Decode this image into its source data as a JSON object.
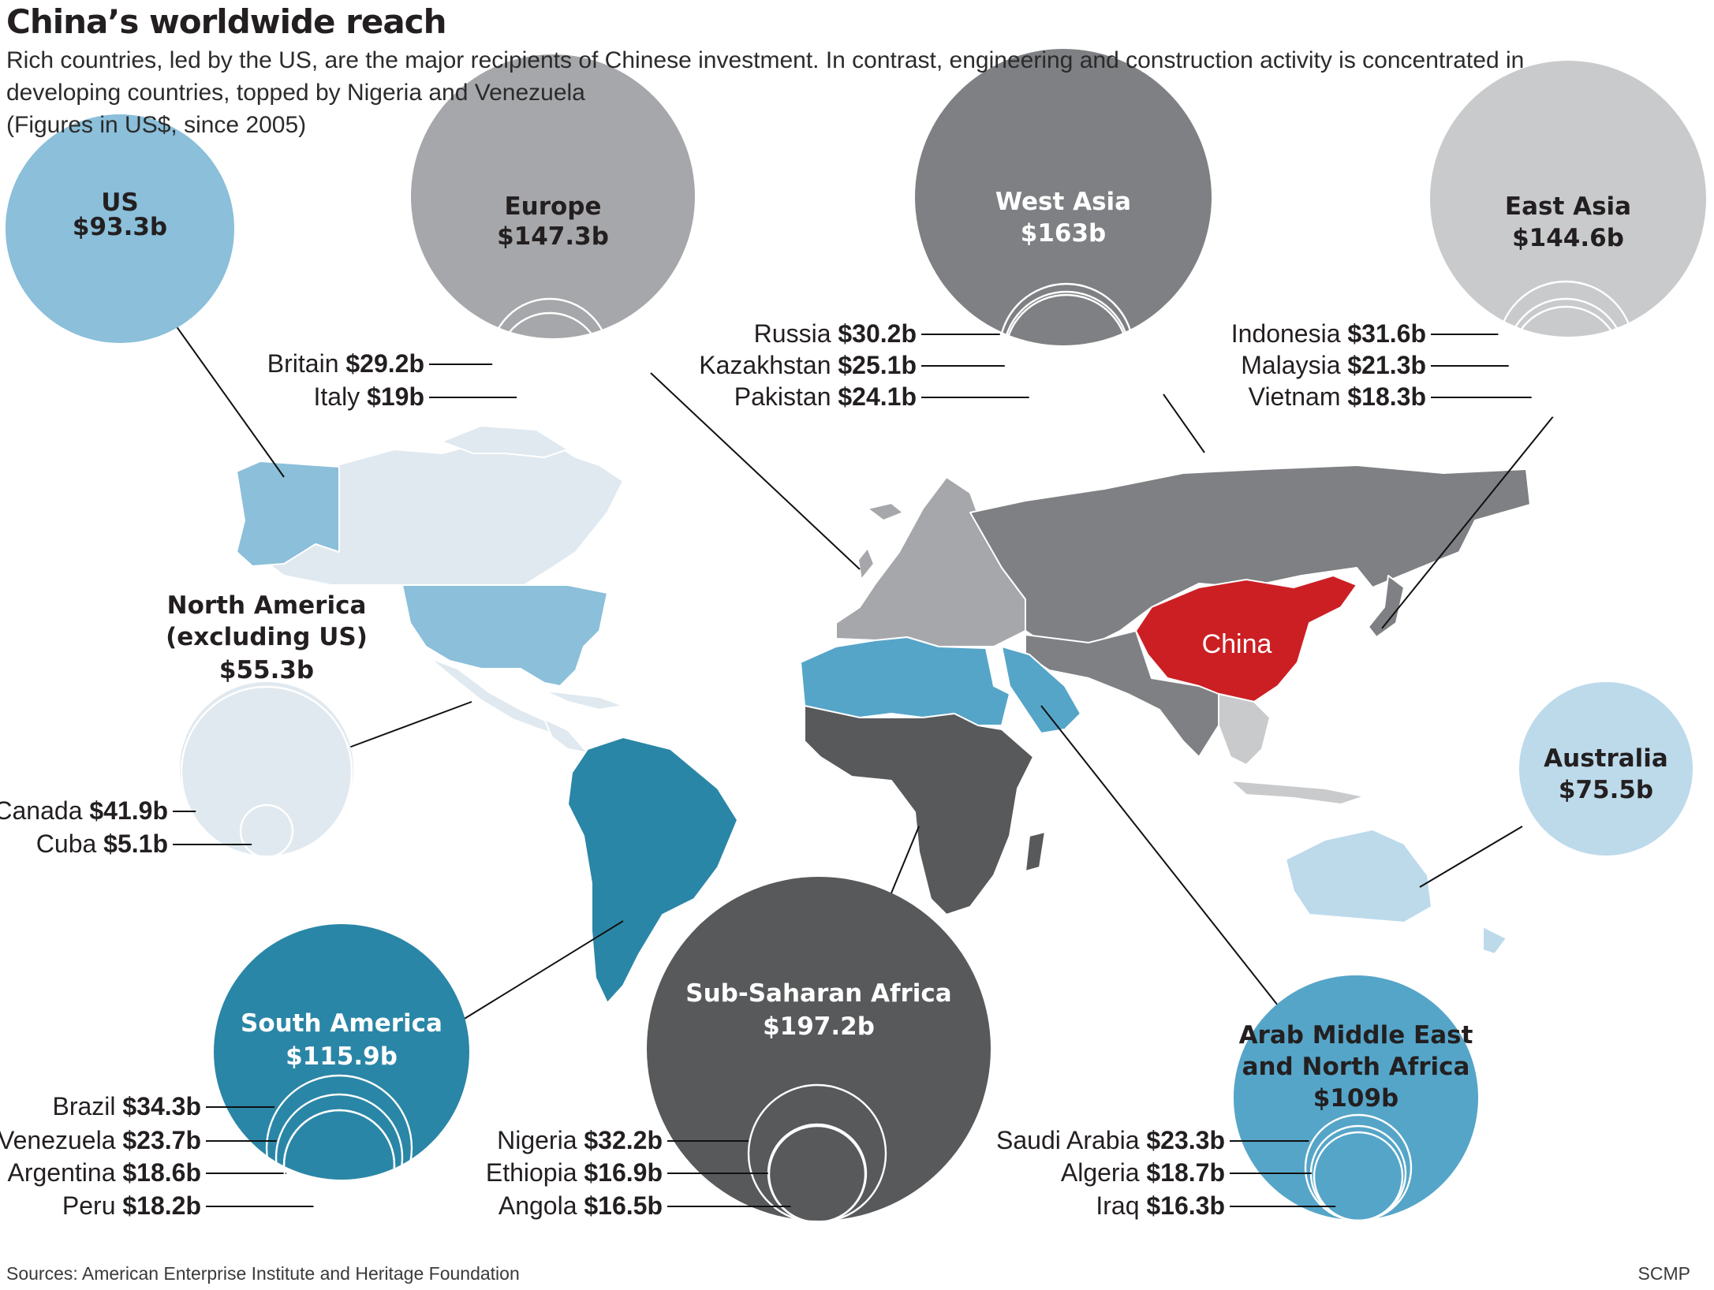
{
  "header": {
    "title": "China’s worldwide reach",
    "subtitle_lines": [
      "Rich countries, led by the US, are the major recipients of Chinese investment. In contrast, engineering and construction activity is concentrated in",
      "developing countries, topped by Nigeria and Venezuela",
      "(Figures in US$, since 2005)"
    ]
  },
  "footer": {
    "sources": "Sources: American Enterprise Institute and Heritage Foundation",
    "credit": "SCMP"
  },
  "map": {
    "china_label": "China",
    "colors": {
      "us": "#8bbfda",
      "north_america": "#e0e9ef",
      "europe": "#a6a7aa",
      "west_asia": "#7e8083",
      "east_asia": "#c9cacc",
      "china": "#cc1f24",
      "australia": "#bddaeb",
      "south_america": "#2a86a6",
      "sub_saharan_africa": "#58595b",
      "mena": "#55a5c8"
    }
  },
  "regions": [
    {
      "id": "us",
      "name": "US",
      "value": "$93.3b",
      "color": "#8bbfda",
      "text_color": "#231f20",
      "countries": []
    },
    {
      "id": "europe",
      "name": "Europe",
      "value": "$147.3b",
      "color": "#a6a7aa",
      "text_color": "#231f20",
      "countries": [
        {
          "name": "Britain",
          "value": "$29.2b"
        },
        {
          "name": "Italy",
          "value": "$19b"
        }
      ]
    },
    {
      "id": "west-asia",
      "name": "West Asia",
      "value": "$163b",
      "color": "#7e8083",
      "text_color": "#ffffff",
      "countries": [
        {
          "name": "Russia",
          "value": "$30.2b"
        },
        {
          "name": "Kazakhstan",
          "value": "$25.1b"
        },
        {
          "name": "Pakistan",
          "value": "$24.1b"
        }
      ]
    },
    {
      "id": "east-asia",
      "name": "East Asia",
      "value": "$144.6b",
      "color": "#c9cacc",
      "text_color": "#231f20",
      "countries": [
        {
          "name": "Indonesia",
          "value": "$31.6b"
        },
        {
          "name": "Malaysia",
          "value": "$21.3b"
        },
        {
          "name": "Vietnam",
          "value": "$18.3b"
        }
      ]
    },
    {
      "id": "north-america",
      "name": "North America\n(excluding US)",
      "value": "$55.3b",
      "color": "#e0e9ef",
      "text_color": "#231f20",
      "countries": [
        {
          "name": "Canada",
          "value": "$41.9b"
        },
        {
          "name": "Cuba",
          "value": "$5.1b"
        }
      ]
    },
    {
      "id": "australia",
      "name": "Australia",
      "value": "$75.5b",
      "color": "#bddaeb",
      "text_color": "#231f20",
      "countries": []
    },
    {
      "id": "south-america",
      "name": "South America",
      "value": "$115.9b",
      "color": "#2a86a6",
      "text_color": "#ffffff",
      "countries": [
        {
          "name": "Brazil",
          "value": "$34.3b"
        },
        {
          "name": "Venezuela",
          "value": "$23.7b"
        },
        {
          "name": "Argentina",
          "value": "$18.6b"
        },
        {
          "name": "Peru",
          "value": "$18.2b"
        }
      ]
    },
    {
      "id": "sub-saharan-africa",
      "name": "Sub-Saharan Africa",
      "value": "$197.2b",
      "color": "#58595b",
      "text_color": "#ffffff",
      "countries": [
        {
          "name": "Nigeria",
          "value": "$32.2b"
        },
        {
          "name": "Ethiopia",
          "value": "$16.9b"
        },
        {
          "name": "Angola",
          "value": "$16.5b"
        }
      ]
    },
    {
      "id": "mena",
      "name": "Arab Middle East\nand North Africa",
      "value": "$109b",
      "color": "#55a5c8",
      "text_color": "#231f20",
      "countries": [
        {
          "name": "Saudi Arabia",
          "value": "$23.3b"
        },
        {
          "name": "Algeria",
          "value": "$18.7b"
        },
        {
          "name": "Iraq",
          "value": "$16.3b"
        }
      ]
    }
  ]
}
